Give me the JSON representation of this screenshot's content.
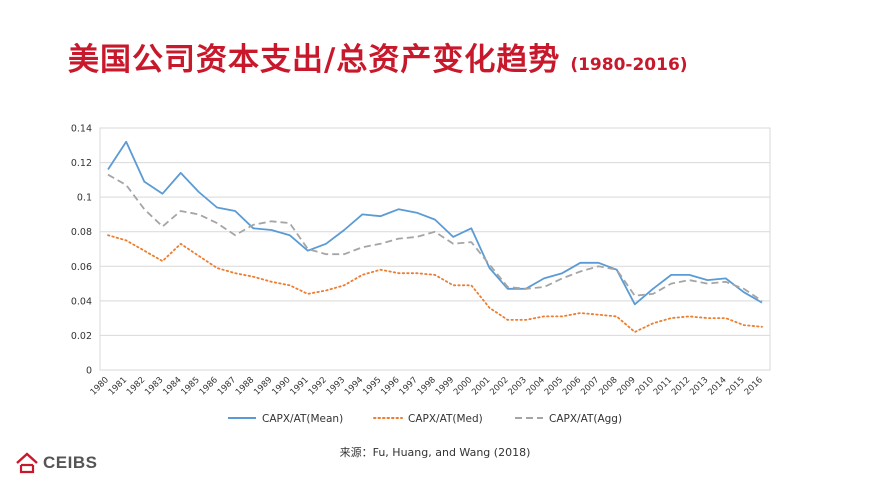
{
  "slide": {
    "title_main": "美国公司资本支出/总资产变化趋势",
    "title_years": "(1980-2016)",
    "source": "来源：Fu, Huang, and Wang (2018)",
    "logo_text": "CEIBS"
  },
  "colors": {
    "title": "#c8192c",
    "mean": "#5b9bd5",
    "med": "#ed7d31",
    "agg": "#a5a5a5",
    "logo": "#c8192c"
  },
  "chart_data": {
    "type": "line",
    "title": "",
    "xlabel": "",
    "ylabel": "",
    "ylim": [
      0,
      0.14
    ],
    "yticks": [
      "0",
      "0.02",
      "0.04",
      "0.06",
      "0.08",
      "0.1",
      "0.12",
      "0.14"
    ],
    "grid": true,
    "legend_position": "bottom",
    "categories": [
      "1980",
      "1981",
      "1982",
      "1983",
      "1984",
      "1985",
      "1986",
      "1987",
      "1988",
      "1989",
      "1990",
      "1991",
      "1992",
      "1993",
      "1994",
      "1995",
      "1996",
      "1997",
      "1998",
      "1999",
      "2000",
      "2001",
      "2002",
      "2003",
      "2004",
      "2005",
      "2006",
      "2007",
      "2008",
      "2009",
      "2010",
      "2011",
      "2012",
      "2013",
      "2014",
      "2015",
      "2016"
    ],
    "series": [
      {
        "name": "CAPX/AT(Mean)",
        "style": "solid",
        "values": [
          0.116,
          0.132,
          0.109,
          0.102,
          0.114,
          0.103,
          0.094,
          0.092,
          0.082,
          0.081,
          0.078,
          0.069,
          0.073,
          0.081,
          0.09,
          0.089,
          0.093,
          0.091,
          0.087,
          0.077,
          0.082,
          0.059,
          0.047,
          0.047,
          0.053,
          0.056,
          0.062,
          0.062,
          0.058,
          0.038,
          0.047,
          0.055,
          0.055,
          0.052,
          0.053,
          0.045,
          0.039
        ]
      },
      {
        "name": "CAPX/AT(Med)",
        "style": "dotted",
        "values": [
          0.078,
          0.075,
          0.069,
          0.063,
          0.073,
          0.066,
          0.059,
          0.056,
          0.054,
          0.051,
          0.049,
          0.044,
          0.046,
          0.049,
          0.055,
          0.058,
          0.056,
          0.056,
          0.055,
          0.049,
          0.049,
          0.036,
          0.029,
          0.029,
          0.031,
          0.031,
          0.033,
          0.032,
          0.031,
          0.022,
          0.027,
          0.03,
          0.031,
          0.03,
          0.03,
          0.026,
          0.025
        ]
      },
      {
        "name": "CAPX/AT(Agg)",
        "style": "dashed",
        "values": [
          0.113,
          0.107,
          0.093,
          0.083,
          0.092,
          0.09,
          0.085,
          0.078,
          0.084,
          0.086,
          0.085,
          0.07,
          0.067,
          0.067,
          0.071,
          0.073,
          0.076,
          0.077,
          0.08,
          0.073,
          0.074,
          0.061,
          0.048,
          0.047,
          0.048,
          0.053,
          0.057,
          0.06,
          0.058,
          0.043,
          0.044,
          0.05,
          0.052,
          0.05,
          0.051,
          0.047,
          0.04
        ]
      }
    ]
  }
}
